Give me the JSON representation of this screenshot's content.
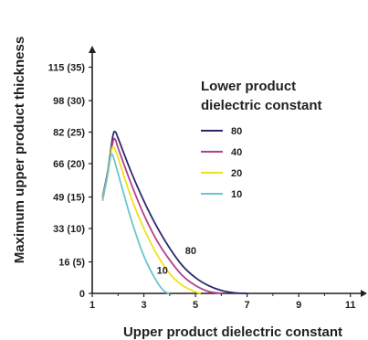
{
  "chart_data": {
    "type": "line",
    "xlabel": "Upper product dielectric constant",
    "ylabel": "Maximum upper product thickness",
    "xlim": [
      1,
      11.4
    ],
    "ylim": [
      0,
      125
    ],
    "x_ticks": [
      {
        "value": 1,
        "label": "1"
      },
      {
        "value": 3,
        "label": "3"
      },
      {
        "value": 5,
        "label": "5"
      },
      {
        "value": 7,
        "label": "7"
      },
      {
        "value": 9,
        "label": "9"
      },
      {
        "value": 11,
        "label": "11"
      }
    ],
    "y_ticks": [
      {
        "value": 0,
        "label": "0"
      },
      {
        "value": 16,
        "label": "16 (5)"
      },
      {
        "value": 33,
        "label": "33 (10)"
      },
      {
        "value": 49,
        "label": "49 (15)"
      },
      {
        "value": 66,
        "label": "66 (20)"
      },
      {
        "value": 82,
        "label": "82 (25)"
      },
      {
        "value": 98,
        "label": "98 (30)"
      },
      {
        "value": 115,
        "label": "115 (35)"
      }
    ],
    "legend": {
      "title_line1": "Lower product",
      "title_line2": "dielectric constant",
      "placement": "top-right"
    },
    "series": [
      {
        "name": "80",
        "color": "#2b2a6e",
        "x": [
          1.4,
          1.6,
          1.8,
          1.9,
          2.0,
          2.5,
          3.0,
          3.5,
          4.0,
          4.5,
          5.0,
          5.5,
          6.0,
          6.5,
          7.0
        ],
        "y": [
          49,
          62,
          80,
          82,
          79,
          62,
          47,
          34,
          23,
          14,
          8,
          4,
          1.5,
          0.3,
          0
        ]
      },
      {
        "name": "40",
        "color": "#b3408f",
        "x": [
          1.4,
          1.6,
          1.8,
          1.9,
          2.0,
          2.5,
          3.0,
          3.5,
          4.0,
          4.5,
          5.0,
          5.5,
          6.0
        ],
        "y": [
          49,
          61,
          77,
          78,
          74,
          56,
          40,
          27,
          17,
          9,
          4,
          1,
          0
        ]
      },
      {
        "name": "20",
        "color": "#f0e11e",
        "x": [
          1.4,
          1.6,
          1.75,
          1.85,
          2.0,
          2.5,
          3.0,
          3.5,
          4.0,
          4.5,
          5.0,
          5.2
        ],
        "y": [
          48,
          60,
          73,
          74,
          69,
          49,
          33,
          20,
          10,
          4,
          0.8,
          0
        ]
      },
      {
        "name": "10",
        "color": "#6bc6cd",
        "x": [
          1.4,
          1.55,
          1.7,
          1.8,
          2.0,
          2.5,
          3.0,
          3.5,
          3.8,
          4.0
        ],
        "y": [
          47,
          57,
          69,
          70,
          61,
          38,
          19,
          6,
          1,
          0
        ]
      }
    ],
    "annotations": [
      {
        "text": "80",
        "x": 4.6,
        "y": 20
      },
      {
        "text": "10",
        "x": 3.5,
        "y": 10
      }
    ]
  }
}
